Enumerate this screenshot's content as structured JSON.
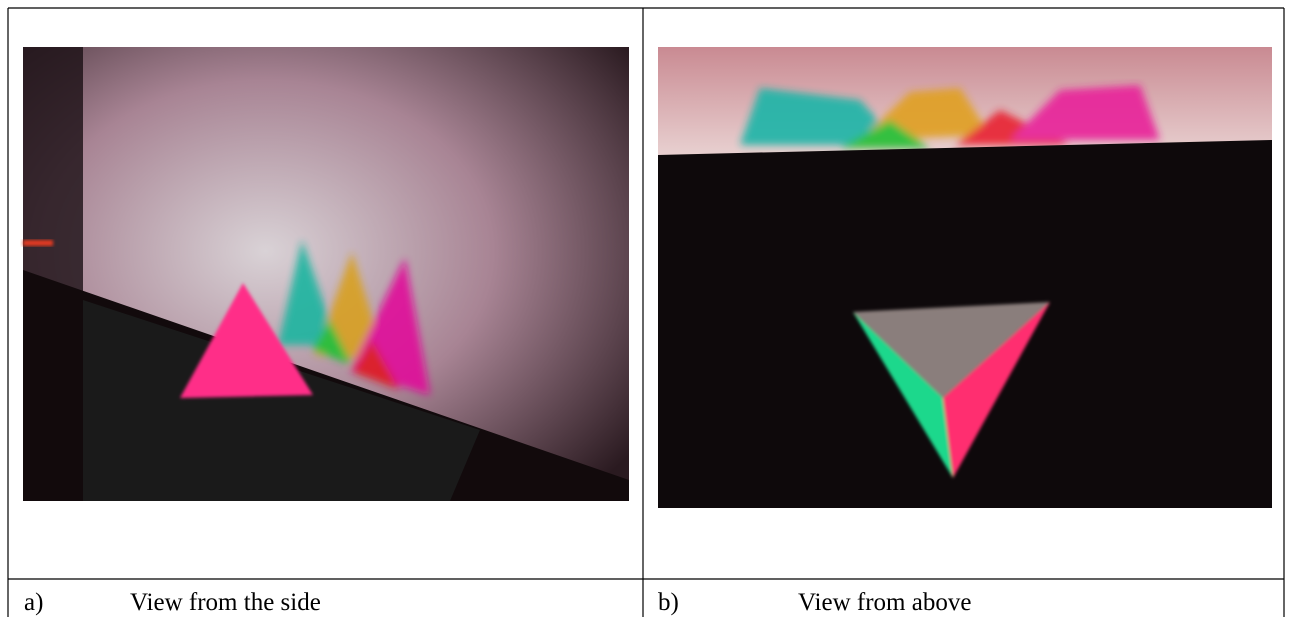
{
  "figure": {
    "cells": [
      {
        "label": "a)",
        "caption": "View from the side"
      },
      {
        "label": "b)",
        "caption": "View from above"
      }
    ]
  }
}
